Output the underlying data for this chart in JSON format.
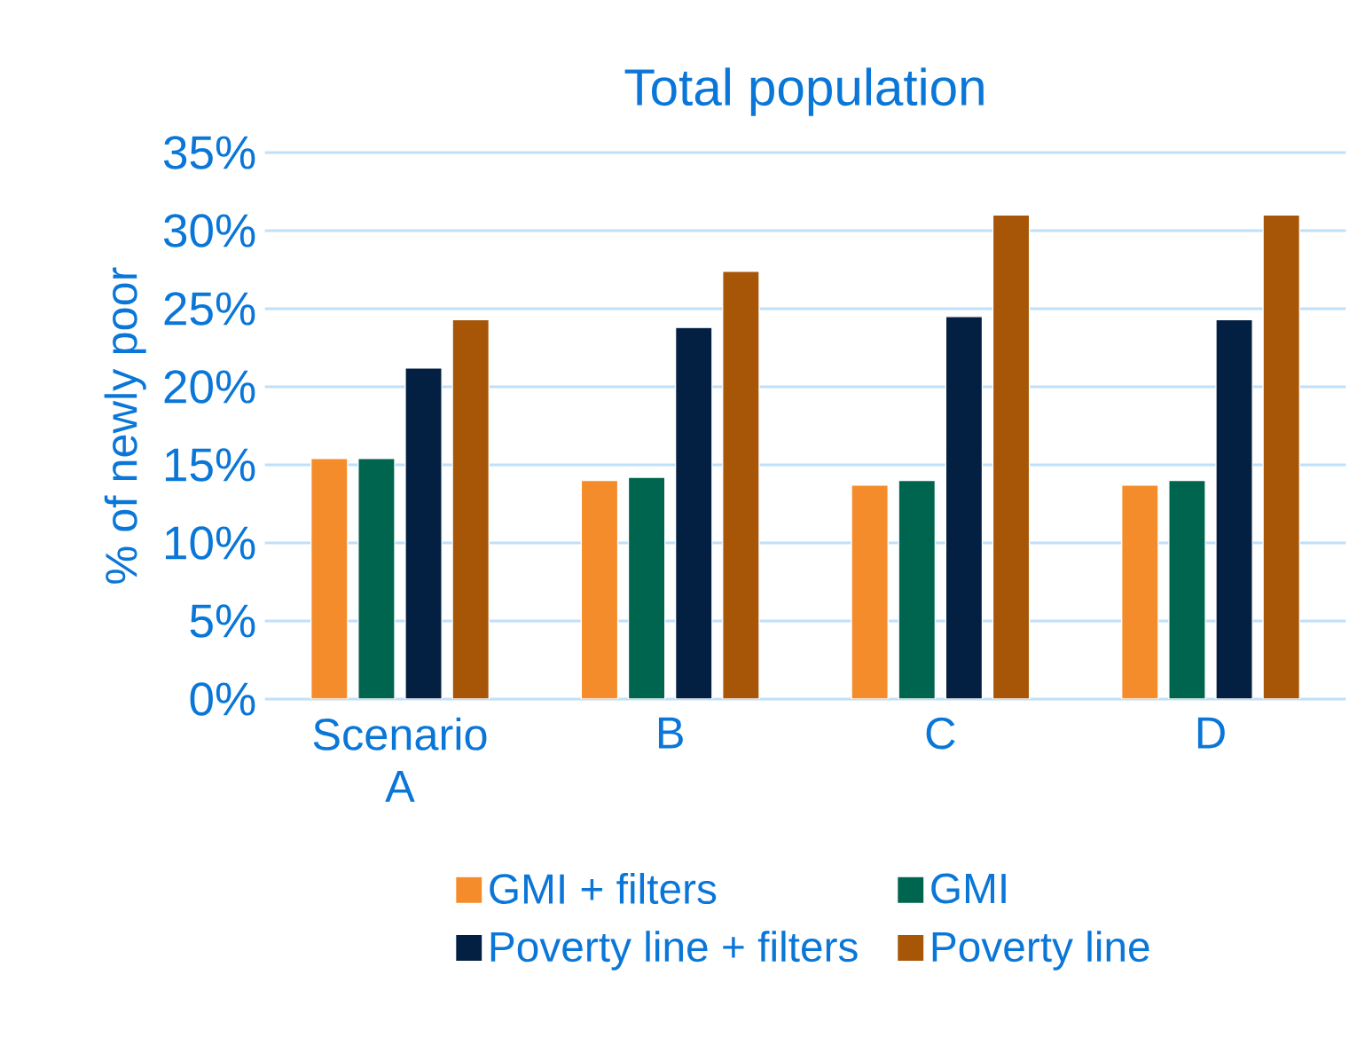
{
  "chart_data": {
    "type": "bar",
    "title": "Total population",
    "ylabel": "% of newly poor",
    "categories": [
      "Scenario A",
      "B",
      "C",
      "D"
    ],
    "series": [
      {
        "name": "GMI + filters",
        "color": "#f58c2b",
        "values": [
          15.4,
          14.0,
          13.7,
          13.7
        ]
      },
      {
        "name": "GMI",
        "color": "#00654f",
        "values": [
          15.4,
          14.2,
          14.0,
          14.0
        ]
      },
      {
        "name": "Poverty line + filters",
        "color": "#031f42",
        "values": [
          21.2,
          23.8,
          24.5,
          24.3
        ]
      },
      {
        "name": "Poverty line",
        "color": "#a75506",
        "values": [
          24.3,
          27.4,
          31.0,
          31.0
        ]
      }
    ],
    "ylim": [
      0,
      35
    ],
    "yticks": [
      {
        "value": 0,
        "label": "0%"
      },
      {
        "value": 5,
        "label": "5%"
      },
      {
        "value": 10,
        "label": "10%"
      },
      {
        "value": 15,
        "label": "15%"
      },
      {
        "value": 20,
        "label": "20%"
      },
      {
        "value": 25,
        "label": "25%"
      },
      {
        "value": 30,
        "label": "30%"
      },
      {
        "value": 35,
        "label": "35%"
      }
    ],
    "grid": "y",
    "legend": "bottom"
  }
}
